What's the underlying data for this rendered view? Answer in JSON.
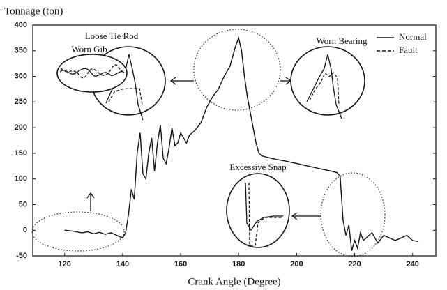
{
  "chart_data": {
    "type": "line",
    "y_label": "Tonnage (ton)",
    "x_label": "Crank Angle (Degree)",
    "xlim": [
      109,
      248
    ],
    "ylim": [
      -50,
      400
    ],
    "xticks": [
      120,
      140,
      160,
      180,
      200,
      220,
      240
    ],
    "yticks": [
      -50,
      0,
      50,
      100,
      150,
      200,
      250,
      300,
      350,
      400
    ],
    "legend": [
      {
        "name": "Normal",
        "style": "solid"
      },
      {
        "name": "Fault",
        "style": "dashed"
      }
    ],
    "annotations": [
      "Loose Tie Rod",
      "Worn Bearing",
      "Worn Gib",
      "Excessive Snap"
    ],
    "series": [
      {
        "name": "Normal",
        "color": "#111111",
        "x": [
          120,
          123,
          126,
          128,
          130,
          132,
          134,
          136,
          138,
          140,
          141,
          142,
          143,
          144,
          145,
          146,
          147,
          148,
          149,
          150,
          151,
          152,
          153,
          154,
          155,
          156,
          157,
          158,
          159,
          160,
          161,
          162,
          163,
          165,
          167,
          169,
          171,
          173,
          175,
          177,
          178,
          179,
          180,
          181,
          182,
          183,
          184,
          185,
          186,
          187,
          188,
          190,
          193,
          196,
          200,
          204,
          208,
          212,
          214,
          215,
          216,
          217,
          218,
          219,
          220,
          221,
          222,
          223,
          224,
          226,
          228,
          230,
          232,
          234,
          236,
          238,
          240,
          242
        ],
        "values": [
          0,
          -2,
          -5,
          -3,
          -7,
          -4,
          -8,
          -5,
          -10,
          -15,
          -5,
          30,
          80,
          60,
          150,
          190,
          110,
          100,
          150,
          180,
          115,
          170,
          205,
          140,
          130,
          160,
          200,
          165,
          170,
          190,
          180,
          170,
          185,
          195,
          210,
          240,
          260,
          275,
          300,
          320,
          340,
          360,
          375,
          350,
          300,
          260,
          230,
          200,
          170,
          150,
          145,
          142,
          138,
          135,
          130,
          125,
          120,
          115,
          112,
          105,
          20,
          -10,
          10,
          -40,
          -20,
          -35,
          -5,
          -20,
          -15,
          -5,
          -25,
          -10,
          -15,
          -20,
          -15,
          -10,
          -20,
          -22
        ]
      }
    ]
  }
}
